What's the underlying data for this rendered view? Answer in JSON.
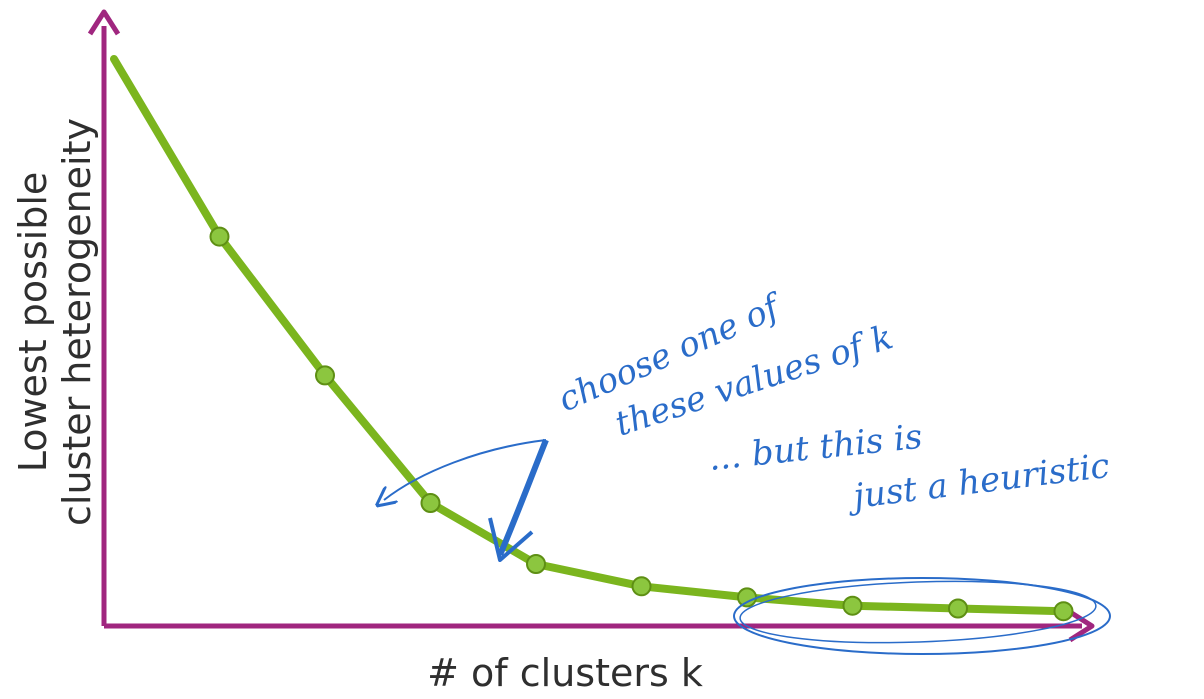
{
  "chart_data": {
    "type": "line",
    "xlabel": "# of clusters k",
    "ylabel_lines": [
      "Lowest possible",
      "cluster heterogeneity"
    ],
    "points": [
      {
        "k": 1,
        "value": 100
      },
      {
        "k": 2,
        "value": 68
      },
      {
        "k": 3,
        "value": 43
      },
      {
        "k": 4,
        "value": 20
      },
      {
        "k": 5,
        "value": 9
      },
      {
        "k": 6,
        "value": 5
      },
      {
        "k": 7,
        "value": 3
      },
      {
        "k": 8,
        "value": 1.5
      },
      {
        "k": 9,
        "value": 1
      },
      {
        "k": 10,
        "value": 0.5
      }
    ],
    "marked_points_from_k": 2,
    "colors": {
      "axis": "#a0267f",
      "line": "#7bb51e",
      "marker": "#8cc63f",
      "marker_edge": "#5e8f14",
      "annotation": "#2a6cc9"
    }
  },
  "annotations": {
    "choose_line1": "choose one of",
    "choose_line2": "these values of k",
    "heuristic_line1": "... but this is",
    "heuristic_line2": "just a heuristic"
  }
}
